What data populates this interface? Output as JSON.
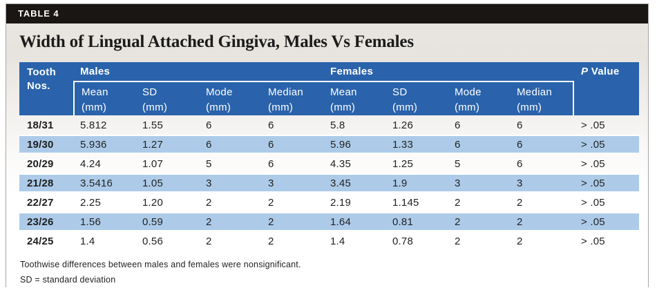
{
  "label_bar": {
    "text": "TABLE 4"
  },
  "title": "Width of Lingual Attached Gingiva, Males Vs Females",
  "colors": {
    "header_blue": "#2a63ab",
    "subheader_blue": "#5f9dd5",
    "alt_row_blue": "#adcbe9",
    "label_bar_black": "#1a1613",
    "background_beige": "#e8e4df"
  },
  "table": {
    "corner_header": {
      "line1": "Tooth",
      "line2": "Nos."
    },
    "group_headers": [
      "Males",
      "Females"
    ],
    "p_value_header": {
      "p": "P",
      "rest": " Value"
    },
    "sub_headers": [
      {
        "line1": "Mean",
        "line2": "(mm)"
      },
      {
        "line1": "SD",
        "line2": "(mm)"
      },
      {
        "line1": "Mode",
        "line2": "(mm)"
      },
      {
        "line1": "Median",
        "line2": "(mm)"
      }
    ],
    "rows": [
      {
        "tooth": "18/31",
        "values": [
          "5.812",
          "1.55",
          "6",
          "6",
          "5.8",
          "1.26",
          "6",
          "6"
        ],
        "p": "> .05"
      },
      {
        "tooth": "19/30",
        "values": [
          "5.936",
          "1.27",
          "6",
          "6",
          "5.96",
          "1.33",
          "6",
          "6"
        ],
        "p": "> .05"
      },
      {
        "tooth": "20/29",
        "values": [
          "4.24",
          "1.07",
          "5",
          "6",
          "4.35",
          "1.25",
          "5",
          "6"
        ],
        "p": "> .05"
      },
      {
        "tooth": "21/28",
        "values": [
          "3.5416",
          "1.05",
          "3",
          "3",
          "3.45",
          "1.9",
          "3",
          "3"
        ],
        "p": "> .05"
      },
      {
        "tooth": "22/27",
        "values": [
          "2.25",
          "1.20",
          "2",
          "2",
          "2.19",
          "1.145",
          "2",
          "2"
        ],
        "p": "> .05"
      },
      {
        "tooth": "23/26",
        "values": [
          "1.56",
          "0.59",
          "2",
          "2",
          "1.64",
          "0.81",
          "2",
          "2"
        ],
        "p": "> .05"
      },
      {
        "tooth": "24/25",
        "values": [
          "1.4",
          "0.56",
          "2",
          "2",
          "1.4",
          "0.78",
          "2",
          "2"
        ],
        "p": "> .05"
      }
    ]
  },
  "footnotes": [
    "Toothwise differences between males and females were nonsignificant.",
    "SD = standard deviation"
  ]
}
